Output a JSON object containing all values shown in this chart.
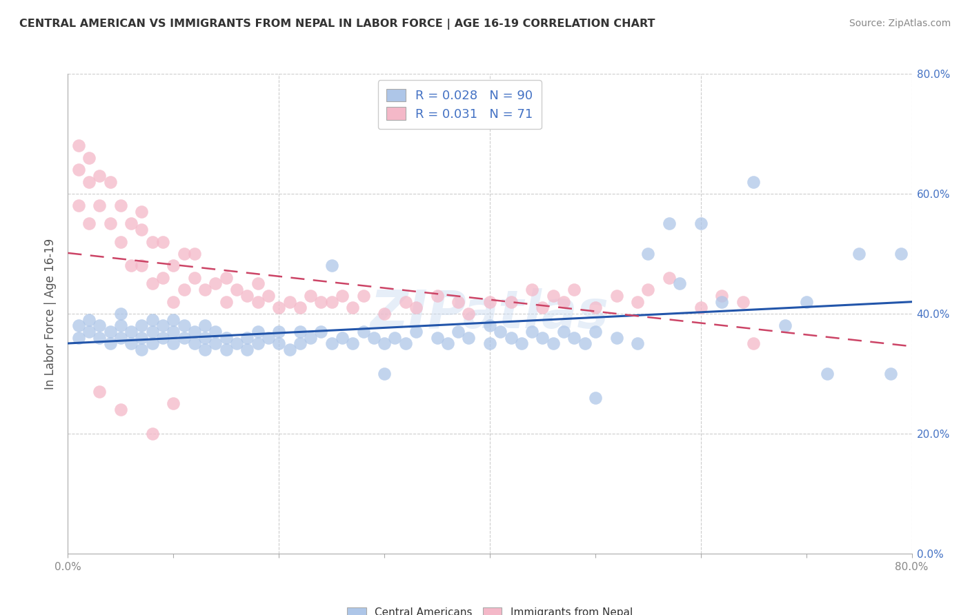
{
  "title": "CENTRAL AMERICAN VS IMMIGRANTS FROM NEPAL IN LABOR FORCE | AGE 16-19 CORRELATION CHART",
  "source": "Source: ZipAtlas.com",
  "ylabel": "In Labor Force | Age 16-19",
  "xlim": [
    0.0,
    0.8
  ],
  "ylim": [
    0.0,
    0.8
  ],
  "xticks": [
    0.0,
    0.1,
    0.2,
    0.3,
    0.4,
    0.5,
    0.6,
    0.7,
    0.8
  ],
  "yticks": [
    0.0,
    0.2,
    0.4,
    0.6,
    0.8
  ],
  "xtick_labels_show": [
    "0.0%",
    "",
    "",
    "",
    "",
    "",
    "",
    "",
    "80.0%"
  ],
  "ytick_labels": [
    "0.0%",
    "20.0%",
    "40.0%",
    "60.0%",
    "80.0%"
  ],
  "blue_R": 0.028,
  "blue_N": 90,
  "pink_R": 0.031,
  "pink_N": 71,
  "blue_color": "#aec6e8",
  "pink_color": "#f4b8c8",
  "blue_line_color": "#2255aa",
  "pink_line_color": "#cc4466",
  "legend_label_blue": "Central Americans",
  "legend_label_pink": "Immigrants from Nepal",
  "watermark": "ZIPatlas",
  "blue_x": [
    0.01,
    0.01,
    0.02,
    0.02,
    0.03,
    0.03,
    0.04,
    0.04,
    0.05,
    0.05,
    0.05,
    0.06,
    0.06,
    0.07,
    0.07,
    0.07,
    0.08,
    0.08,
    0.08,
    0.09,
    0.09,
    0.1,
    0.1,
    0.1,
    0.11,
    0.11,
    0.12,
    0.12,
    0.13,
    0.13,
    0.13,
    0.14,
    0.14,
    0.15,
    0.15,
    0.16,
    0.17,
    0.17,
    0.18,
    0.18,
    0.19,
    0.2,
    0.2,
    0.21,
    0.22,
    0.22,
    0.23,
    0.24,
    0.25,
    0.26,
    0.27,
    0.28,
    0.29,
    0.3,
    0.31,
    0.32,
    0.33,
    0.35,
    0.36,
    0.37,
    0.38,
    0.4,
    0.41,
    0.42,
    0.43,
    0.44,
    0.45,
    0.46,
    0.47,
    0.48,
    0.49,
    0.5,
    0.52,
    0.54,
    0.55,
    0.57,
    0.58,
    0.6,
    0.62,
    0.65,
    0.68,
    0.7,
    0.72,
    0.75,
    0.78,
    0.79,
    0.25,
    0.3,
    0.4,
    0.5
  ],
  "blue_y": [
    0.36,
    0.38,
    0.37,
    0.39,
    0.36,
    0.38,
    0.35,
    0.37,
    0.36,
    0.38,
    0.4,
    0.35,
    0.37,
    0.34,
    0.36,
    0.38,
    0.35,
    0.37,
    0.39,
    0.36,
    0.38,
    0.35,
    0.37,
    0.39,
    0.36,
    0.38,
    0.35,
    0.37,
    0.34,
    0.36,
    0.38,
    0.35,
    0.37,
    0.34,
    0.36,
    0.35,
    0.34,
    0.36,
    0.35,
    0.37,
    0.36,
    0.35,
    0.37,
    0.34,
    0.35,
    0.37,
    0.36,
    0.37,
    0.35,
    0.36,
    0.35,
    0.37,
    0.36,
    0.35,
    0.36,
    0.35,
    0.37,
    0.36,
    0.35,
    0.37,
    0.36,
    0.35,
    0.37,
    0.36,
    0.35,
    0.37,
    0.36,
    0.35,
    0.37,
    0.36,
    0.35,
    0.37,
    0.36,
    0.35,
    0.5,
    0.55,
    0.45,
    0.55,
    0.42,
    0.62,
    0.38,
    0.42,
    0.3,
    0.5,
    0.3,
    0.5,
    0.48,
    0.3,
    0.38,
    0.26
  ],
  "pink_x": [
    0.01,
    0.01,
    0.01,
    0.02,
    0.02,
    0.02,
    0.03,
    0.03,
    0.04,
    0.04,
    0.05,
    0.05,
    0.06,
    0.06,
    0.07,
    0.07,
    0.07,
    0.08,
    0.08,
    0.09,
    0.09,
    0.1,
    0.1,
    0.11,
    0.11,
    0.12,
    0.12,
    0.13,
    0.14,
    0.15,
    0.15,
    0.16,
    0.17,
    0.18,
    0.18,
    0.19,
    0.2,
    0.21,
    0.22,
    0.23,
    0.24,
    0.25,
    0.26,
    0.27,
    0.28,
    0.3,
    0.32,
    0.33,
    0.35,
    0.37,
    0.38,
    0.4,
    0.42,
    0.44,
    0.45,
    0.46,
    0.47,
    0.48,
    0.5,
    0.52,
    0.54,
    0.55,
    0.57,
    0.6,
    0.62,
    0.64,
    0.65,
    0.03,
    0.05,
    0.08,
    0.1
  ],
  "pink_y": [
    0.58,
    0.64,
    0.68,
    0.55,
    0.62,
    0.66,
    0.58,
    0.63,
    0.55,
    0.62,
    0.52,
    0.58,
    0.48,
    0.55,
    0.48,
    0.54,
    0.57,
    0.45,
    0.52,
    0.46,
    0.52,
    0.42,
    0.48,
    0.44,
    0.5,
    0.46,
    0.5,
    0.44,
    0.45,
    0.42,
    0.46,
    0.44,
    0.43,
    0.42,
    0.45,
    0.43,
    0.41,
    0.42,
    0.41,
    0.43,
    0.42,
    0.42,
    0.43,
    0.41,
    0.43,
    0.4,
    0.42,
    0.41,
    0.43,
    0.42,
    0.4,
    0.42,
    0.42,
    0.44,
    0.41,
    0.43,
    0.42,
    0.44,
    0.41,
    0.43,
    0.42,
    0.44,
    0.46,
    0.41,
    0.43,
    0.42,
    0.35,
    0.27,
    0.24,
    0.2,
    0.25
  ]
}
